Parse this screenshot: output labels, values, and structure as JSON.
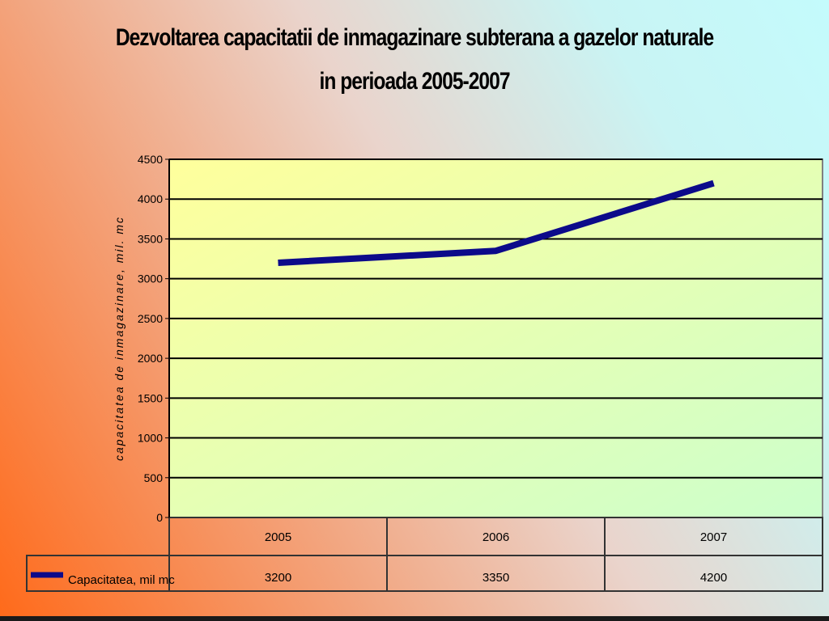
{
  "chart_data": {
    "type": "line",
    "title": "Dezvoltarea capacitatii de inmagazinare subterana a gazelor naturale",
    "subtitle": "in perioada 2005-2007",
    "ylabel": "capacitatea de inmagazinare, mil. mc",
    "xlabel": "",
    "ylim": [
      0,
      4500
    ],
    "y_ticks": [
      "0",
      "500",
      "1000",
      "1500",
      "2000",
      "2500",
      "3000",
      "3500",
      "4000",
      "4500"
    ],
    "categories": [
      "2005",
      "2006",
      "2007"
    ],
    "series": [
      {
        "name": "Capacitatea, mil mc",
        "values": [
          3200,
          3350,
          4200
        ],
        "value_labels": [
          "3200",
          "3350",
          "4200"
        ],
        "color": "#0c0a8a"
      }
    ],
    "grid": true,
    "legend": "data-table",
    "plot_background": [
      "#ffff9c",
      "#ccffcc"
    ]
  }
}
